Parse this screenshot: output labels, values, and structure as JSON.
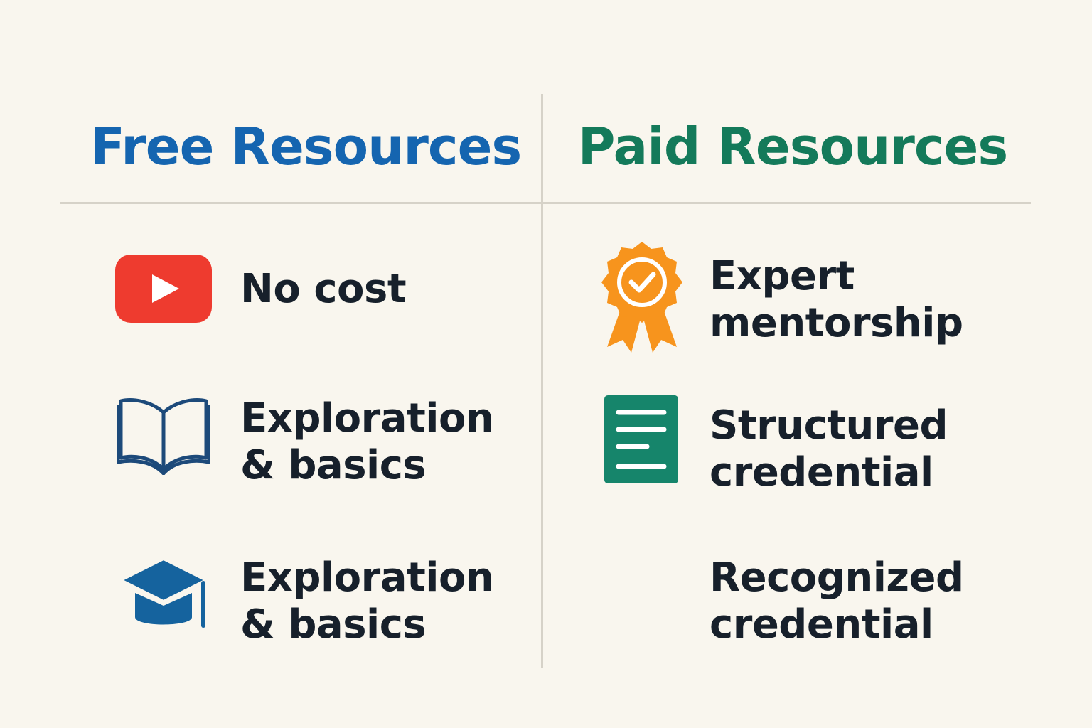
{
  "free": {
    "title": "Free Resources",
    "color": "#1565b0",
    "items": [
      {
        "icon": "youtube-play-icon",
        "lines": [
          "No cost"
        ]
      },
      {
        "icon": "open-book-icon",
        "lines": [
          "Exploration",
          "& basics"
        ]
      },
      {
        "icon": "graduation-cap-icon",
        "lines": [
          "Exploration",
          "& basics"
        ]
      }
    ]
  },
  "paid": {
    "title": "Paid Resources",
    "color": "#147a5a",
    "items": [
      {
        "icon": "award-badge-icon",
        "lines": [
          "Expert",
          "mentorship"
        ]
      },
      {
        "icon": "document-icon",
        "lines": [
          "Structured",
          "credential"
        ]
      },
      {
        "icon": "",
        "lines": [
          "Recognized",
          "credential"
        ]
      }
    ]
  },
  "colors": {
    "background": "#f9f6ee",
    "youtube_red": "#ee3b2f",
    "book_blue": "#1d4a7a",
    "cap_blue": "#15639e",
    "award_orange": "#f7941d",
    "doc_green": "#16856b",
    "text": "#17202b"
  }
}
